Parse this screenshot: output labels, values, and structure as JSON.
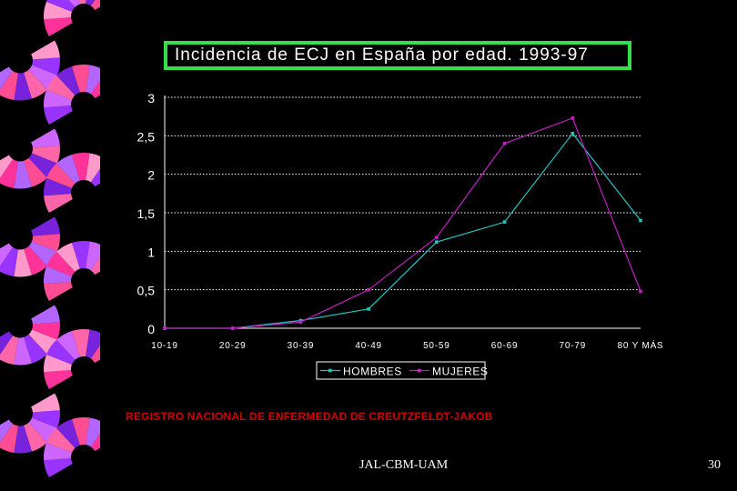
{
  "chart_data": {
    "type": "line",
    "title": "Incidencia de ECJ en España por edad. 1993-97",
    "categories": [
      "10-19",
      "20-29",
      "30-39",
      "40-49",
      "50-59",
      "60-69",
      "70-79",
      "80 Y MÁS"
    ],
    "series": [
      {
        "name": "HOMBRES",
        "color": "#22c4c4",
        "values": [
          0,
          0,
          0.1,
          0.25,
          1.12,
          1.38,
          2.53,
          1.4
        ]
      },
      {
        "name": "MUJERES",
        "color": "#c020c0",
        "values": [
          0,
          0,
          0.08,
          0.5,
          1.18,
          2.4,
          2.73,
          0.48
        ]
      }
    ],
    "y_ticks": [
      "0",
      "0,5",
      "1",
      "1,5",
      "2",
      "2,5",
      "3"
    ],
    "ylim": [
      0,
      3
    ],
    "grid": true,
    "legend_position": "bottom"
  },
  "source_note": "REGISTRO NACIONAL DE ENFERMEDAD DE CREUTZFELDT-JAKOB",
  "footer": {
    "text": "JAL-CBM-UAM",
    "page": "30"
  },
  "colors": {
    "background": "#000000",
    "title_border": "#33e04a",
    "axis": "#ffffff",
    "note": "#d10000"
  }
}
